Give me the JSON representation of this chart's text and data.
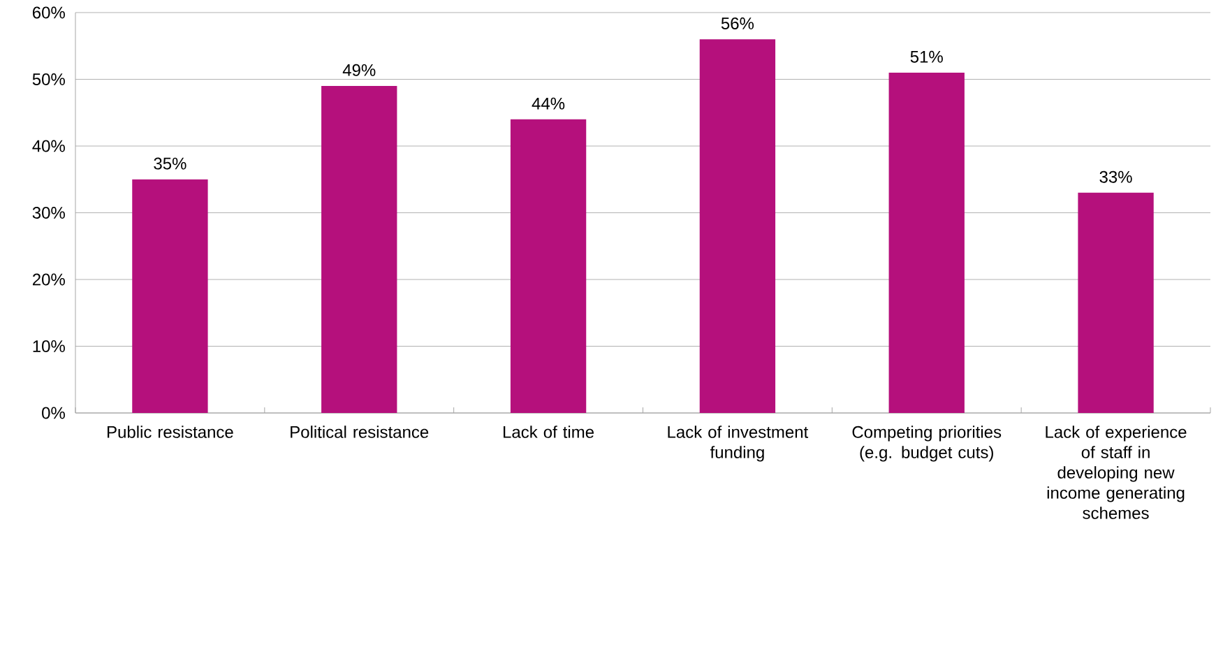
{
  "chart_data": {
    "type": "bar",
    "categories": [
      "Public resistance",
      "Political resistance",
      "Lack of time",
      "Lack of investment funding",
      "Competing priorities (e.g. budget cuts)",
      "Lack of experience of staff in developing new income generating schemes"
    ],
    "values": [
      35,
      49,
      44,
      56,
      51,
      33
    ],
    "value_labels": [
      "35%",
      "49%",
      "44%",
      "56%",
      "51%",
      "33%"
    ],
    "color": "#b5107c",
    "ylim": [
      0,
      60
    ],
    "yticks": [
      {
        "value": 0,
        "label": "0%"
      },
      {
        "value": 10,
        "label": "10%"
      },
      {
        "value": 20,
        "label": "20%"
      },
      {
        "value": 30,
        "label": "30%"
      },
      {
        "value": 40,
        "label": "40%"
      },
      {
        "value": 50,
        "label": "50%"
      },
      {
        "value": 60,
        "label": "60%"
      }
    ],
    "grid": "y"
  }
}
